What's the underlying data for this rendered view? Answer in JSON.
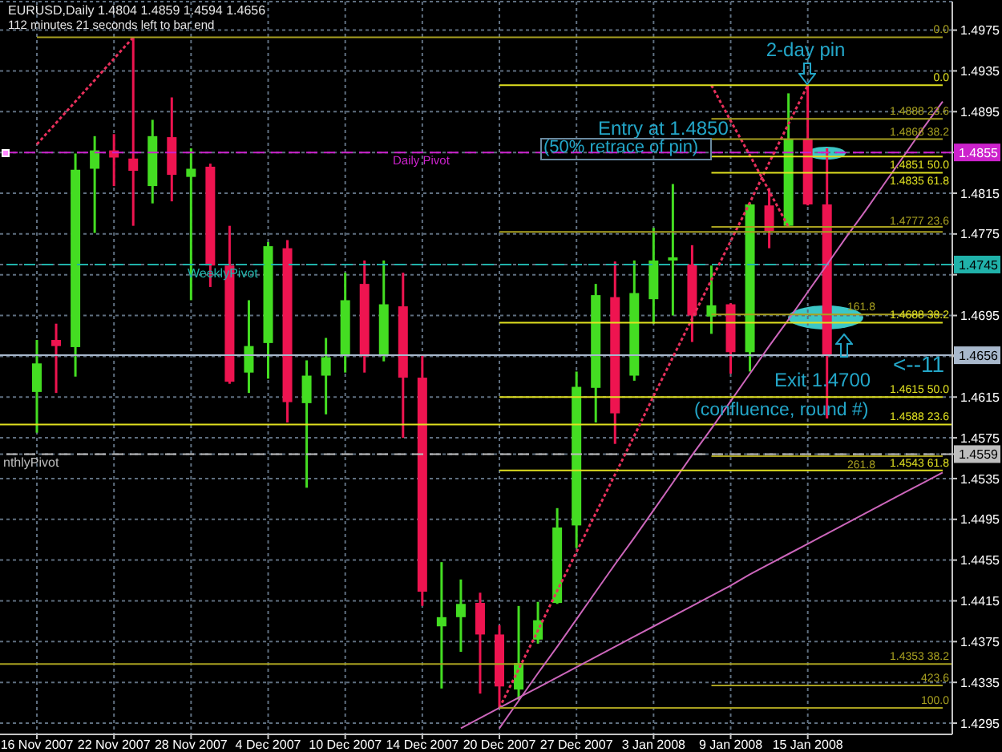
{
  "chart_data": {
    "type": "candlestick",
    "title": "EURUSD,Daily 1.4804 1.4859 1.4594 1.4656",
    "subtitle": "112 minutes 21 seconds left to bar end",
    "categories": [
      "16 Nov 2007",
      null,
      null,
      null,
      "22 Nov 2007",
      null,
      null,
      null,
      "28 Nov 2007",
      null,
      null,
      null,
      "4 Dec 2007",
      null,
      null,
      null,
      "10 Dec 2007",
      null,
      null,
      null,
      "14 Dec 2007",
      null,
      null,
      null,
      "20 Dec 2007",
      null,
      null,
      null,
      "27 Dec 2007",
      null,
      null,
      null,
      "3 Jan 2008",
      null,
      null,
      null,
      "9 Jan 2008",
      null,
      null,
      null,
      "15 Jan 2008",
      null,
      null,
      null,
      null,
      null,
      null,
      null
    ],
    "ohlc": [
      [
        1.462,
        1.4671,
        1.458,
        1.4648
      ],
      [
        1.4671,
        1.4687,
        1.4619,
        1.4665
      ],
      [
        1.4664,
        1.4854,
        1.4635,
        1.4838
      ],
      [
        1.4839,
        1.4871,
        1.4776,
        1.4857
      ],
      [
        1.4857,
        1.4873,
        1.4822,
        1.485
      ],
      [
        1.4849,
        1.4968,
        1.4783,
        1.4837
      ],
      [
        1.4822,
        1.4887,
        1.4805,
        1.4871
      ],
      [
        1.487,
        1.4909,
        1.4807,
        1.4833
      ],
      [
        1.4831,
        1.4859,
        1.471,
        1.4839
      ],
      [
        1.4841,
        1.4844,
        1.4723,
        1.4744
      ],
      [
        1.4744,
        1.4783,
        1.4628,
        1.463
      ],
      [
        1.4639,
        1.471,
        1.4619,
        1.4665
      ],
      [
        1.4668,
        1.4767,
        1.4633,
        1.4763
      ],
      [
        1.4761,
        1.4769,
        1.459,
        1.461
      ],
      [
        1.4609,
        1.4651,
        1.4526,
        1.4636
      ],
      [
        1.4636,
        1.4673,
        1.4598,
        1.4654
      ],
      [
        1.4656,
        1.4737,
        1.4639,
        1.471
      ],
      [
        1.4726,
        1.4749,
        1.4639,
        1.4655
      ],
      [
        1.4656,
        1.4749,
        1.465,
        1.4706
      ],
      [
        1.4704,
        1.4737,
        1.4575,
        1.4634
      ],
      [
        1.4634,
        1.4656,
        1.441,
        1.4424
      ],
      [
        1.439,
        1.4453,
        1.4329,
        1.4399
      ],
      [
        1.4399,
        1.4436,
        1.4365,
        1.4412
      ],
      [
        1.4413,
        1.4423,
        1.4324,
        1.4382
      ],
      [
        1.4382,
        1.4391,
        1.431,
        1.4331
      ],
      [
        1.4328,
        1.441,
        1.4318,
        1.4354
      ],
      [
        1.4377,
        1.4414,
        1.4373,
        1.4396
      ],
      [
        1.4413,
        1.4506,
        1.4412,
        1.4487
      ],
      [
        1.4489,
        1.464,
        1.4467,
        1.4625
      ],
      [
        1.4624,
        1.4726,
        1.459,
        1.4715
      ],
      [
        1.4713,
        1.4748,
        1.4569,
        1.4599
      ],
      [
        1.4636,
        1.4749,
        1.4631,
        1.4717
      ],
      [
        1.4711,
        1.4781,
        1.4687,
        1.4749
      ],
      [
        1.4749,
        1.4824,
        1.4695,
        1.4752
      ],
      [
        1.4745,
        1.4764,
        1.4669,
        1.4695
      ],
      [
        1.4694,
        1.4744,
        1.4677,
        1.4705
      ],
      [
        1.4706,
        1.4707,
        1.4638,
        1.4659
      ],
      [
        1.4659,
        1.4805,
        1.464,
        1.4804
      ],
      [
        1.4803,
        1.482,
        1.4761,
        1.4778
      ],
      [
        1.4783,
        1.4913,
        1.4782,
        1.4868
      ],
      [
        1.4868,
        1.4921,
        1.4803,
        1.4804
      ],
      [
        1.4804,
        1.4859,
        1.4594,
        1.4656
      ],
      null,
      null,
      null,
      null,
      null,
      null
    ],
    "colors": [
      "#44dd22",
      "#ee1450",
      "#44dd22",
      "#44dd22",
      "#ee1450",
      "#ee1450",
      "#44dd22",
      "#ee1450",
      "#44dd22",
      "#ee1450",
      "#ee1450",
      "#44dd22",
      "#44dd22",
      "#ee1450",
      "#44dd22",
      "#44dd22",
      "#44dd22",
      "#ee1450",
      "#44dd22",
      "#ee1450",
      "#ee1450",
      "#44dd22",
      "#44dd22",
      "#ee1450",
      "#ee1450",
      "#44dd22",
      "#44dd22",
      "#44dd22",
      "#44dd22",
      "#44dd22",
      "#ee1450",
      "#44dd22",
      "#44dd22",
      "#44dd22",
      "#ee1450",
      "#44dd22",
      "#ee1450",
      "#44dd22",
      "#ee1450",
      "#44dd22",
      "#ee1450",
      "#ee1450",
      null,
      null,
      null,
      null,
      null,
      null
    ],
    "series": [
      {
        "type": "line",
        "color": "#e8305c",
        "line_style": "dotted",
        "values": [
          1.4863,
          1.4884,
          1.4905,
          1.4926,
          1.4947,
          1.4968,
          null,
          null,
          null,
          null,
          null,
          null,
          null,
          null,
          null,
          null,
          null,
          null,
          null,
          null,
          null,
          null,
          null,
          null,
          null,
          null,
          null,
          null,
          null,
          null,
          null,
          null,
          null,
          null,
          null,
          null,
          null,
          null,
          null,
          null,
          null,
          null,
          null,
          null,
          null,
          null,
          null,
          null
        ]
      },
      {
        "type": "line",
        "color": "#e8305c",
        "line_style": "dotted",
        "values": [
          null,
          null,
          null,
          null,
          null,
          null,
          null,
          null,
          null,
          null,
          null,
          null,
          null,
          null,
          null,
          null,
          null,
          null,
          null,
          null,
          null,
          null,
          null,
          null,
          1.431,
          1.4348,
          1.4386,
          1.4425,
          1.4463,
          1.4501,
          1.4539,
          1.4577,
          1.4616,
          1.4654,
          1.4692,
          1.473,
          1.4768,
          1.4806,
          1.4845,
          1.4883,
          1.4921,
          null,
          null,
          null,
          null,
          null,
          null,
          null
        ]
      },
      {
        "type": "line",
        "color": "#e8305c",
        "line_style": "dotted",
        "values": [
          null,
          null,
          null,
          null,
          null,
          null,
          null,
          null,
          null,
          null,
          null,
          null,
          null,
          null,
          null,
          null,
          null,
          null,
          null,
          null,
          null,
          null,
          null,
          null,
          null,
          null,
          null,
          null,
          null,
          null,
          null,
          null,
          null,
          null,
          null,
          1.4921,
          1.4886,
          1.4852,
          1.4817,
          1.4782,
          null,
          null,
          null,
          null,
          null,
          null,
          null,
          null
        ]
      },
      {
        "type": "line",
        "color": "#cc66bb",
        "values": [
          null,
          null,
          null,
          null,
          null,
          null,
          null,
          null,
          null,
          null,
          null,
          null,
          null,
          null,
          null,
          null,
          null,
          null,
          null,
          null,
          null,
          null,
          null,
          null,
          1.429,
          1.4317,
          1.4344,
          1.437,
          1.4397,
          1.4424,
          1.4451,
          1.4477,
          1.4504,
          1.4531,
          1.4558,
          1.4584,
          1.4611,
          1.4638,
          1.4665,
          1.4691,
          1.4718,
          1.4745,
          1.4772,
          1.4798,
          1.4825,
          1.4852,
          1.4879,
          1.4905
        ]
      },
      {
        "type": "line",
        "color": "#cc66bb",
        "values": [
          null,
          null,
          null,
          null,
          null,
          null,
          null,
          null,
          null,
          null,
          null,
          null,
          null,
          null,
          null,
          null,
          null,
          null,
          null,
          null,
          null,
          null,
          1.429,
          1.43,
          1.431,
          1.432,
          1.433,
          1.434,
          1.435,
          1.436,
          1.437,
          1.438,
          1.439,
          1.44,
          1.441,
          1.442,
          1.443,
          1.4441,
          1.4451,
          1.4461,
          1.4471,
          1.4481,
          1.4491,
          1.4501,
          1.4511,
          1.4521,
          1.4531,
          1.4541
        ]
      },
      {
        "type": "line",
        "name": "0.0",
        "color": "#e0e020",
        "values": [
          null,
          null,
          null,
          null,
          null,
          null,
          null,
          null,
          null,
          null,
          null,
          null,
          null,
          null,
          null,
          null,
          null,
          null,
          null,
          null,
          null,
          null,
          null,
          null,
          1.4921,
          1.4921,
          1.4921,
          1.4921,
          1.4921,
          1.4921,
          1.4921,
          1.4921,
          1.4921,
          1.4921,
          1.4921,
          1.4921,
          1.4921,
          1.4921,
          1.4921,
          1.4921,
          1.4921,
          1.4921,
          1.4921,
          1.4921,
          1.4921,
          1.4921,
          1.4921,
          1.4921
        ]
      },
      {
        "type": "line",
        "name": "1.4777 23.6",
        "color": "#a8a020",
        "values": [
          null,
          null,
          null,
          null,
          null,
          null,
          null,
          null,
          null,
          null,
          null,
          null,
          null,
          null,
          null,
          null,
          null,
          null,
          null,
          null,
          null,
          null,
          null,
          null,
          1.4777,
          1.4777,
          1.4777,
          1.4777,
          1.4777,
          1.4777,
          1.4777,
          1.4777,
          1.4777,
          1.4777,
          1.4777,
          1.4777,
          1.4777,
          1.4777,
          1.4777,
          1.4777,
          1.4777,
          1.4777,
          1.4777,
          1.4777,
          1.4777,
          1.4777,
          1.4777,
          1.4777
        ]
      },
      {
        "type": "line",
        "name": "1.4688 38.2",
        "color": "#e0e020",
        "values": [
          null,
          null,
          null,
          null,
          null,
          null,
          null,
          null,
          null,
          null,
          null,
          null,
          null,
          null,
          null,
          null,
          null,
          null,
          null,
          null,
          null,
          null,
          null,
          null,
          1.4688,
          1.4688,
          1.4688,
          1.4688,
          1.4688,
          1.4688,
          1.4688,
          1.4688,
          1.4688,
          1.4688,
          1.4688,
          1.4688,
          1.4688,
          1.4688,
          1.4688,
          1.4688,
          1.4688,
          1.4688,
          1.4688,
          1.4688,
          1.4688,
          1.4688,
          1.4688,
          1.4688
        ]
      },
      {
        "type": "line",
        "name": "1.4615 50.0",
        "color": "#e0e020",
        "values": [
          null,
          null,
          null,
          null,
          null,
          null,
          null,
          null,
          null,
          null,
          null,
          null,
          null,
          null,
          null,
          null,
          null,
          null,
          null,
          null,
          null,
          null,
          null,
          null,
          1.4615,
          1.4615,
          1.4615,
          1.4615,
          1.4615,
          1.4615,
          1.4615,
          1.4615,
          1.4615,
          1.4615,
          1.4615,
          1.4615,
          1.4615,
          1.4615,
          1.4615,
          1.4615,
          1.4615,
          1.4615,
          1.4615,
          1.4615,
          1.4615,
          1.4615,
          1.4615,
          1.4615
        ]
      },
      {
        "type": "line",
        "name": "1.4543 61.8",
        "color": "#e0e020",
        "values": [
          null,
          null,
          null,
          null,
          null,
          null,
          null,
          null,
          null,
          null,
          null,
          null,
          null,
          null,
          null,
          null,
          null,
          null,
          null,
          null,
          null,
          null,
          null,
          null,
          1.4543,
          1.4543,
          1.4543,
          1.4543,
          1.4543,
          1.4543,
          1.4543,
          1.4543,
          1.4543,
          1.4543,
          1.4543,
          1.4543,
          1.4543,
          1.4543,
          1.4543,
          1.4543,
          1.4543,
          1.4543,
          1.4543,
          1.4543,
          1.4543,
          1.4543,
          1.4543,
          1.4543
        ]
      },
      {
        "type": "line",
        "name": "100.0",
        "color": "#a8a020",
        "values": [
          null,
          null,
          null,
          null,
          null,
          null,
          null,
          null,
          null,
          null,
          null,
          null,
          null,
          null,
          null,
          null,
          null,
          null,
          null,
          null,
          null,
          null,
          null,
          null,
          1.431,
          1.431,
          1.431,
          1.431,
          1.431,
          1.431,
          1.431,
          1.431,
          1.431,
          1.431,
          1.431,
          1.431,
          1.431,
          1.431,
          1.431,
          1.431,
          1.431,
          1.431,
          1.431,
          1.431,
          1.431,
          1.431,
          1.431,
          1.431
        ]
      },
      {
        "type": "line",
        "name": "1.4888 23.6",
        "color": "#a8a020",
        "values": [
          null,
          null,
          null,
          null,
          null,
          null,
          null,
          null,
          null,
          null,
          null,
          null,
          null,
          null,
          null,
          null,
          null,
          null,
          null,
          null,
          null,
          null,
          null,
          null,
          null,
          null,
          null,
          null,
          null,
          null,
          null,
          null,
          null,
          null,
          null,
          1.4888,
          1.4888,
          1.4888,
          1.4888,
          1.4888,
          1.4888,
          1.4888,
          1.4888,
          1.4888,
          1.4888,
          1.4888,
          1.4888,
          1.4888
        ]
      },
      {
        "type": "line",
        "name": "1.4868 38.2",
        "color": "#a8a020",
        "values": [
          null,
          null,
          null,
          null,
          null,
          null,
          null,
          null,
          null,
          null,
          null,
          null,
          null,
          null,
          null,
          null,
          null,
          null,
          null,
          null,
          null,
          null,
          null,
          null,
          null,
          null,
          null,
          null,
          null,
          null,
          null,
          null,
          null,
          null,
          null,
          1.4868,
          1.4868,
          1.4868,
          1.4868,
          1.4868,
          1.4868,
          1.4868,
          1.4868,
          1.4868,
          1.4868,
          1.4868,
          1.4868,
          1.4868
        ]
      },
      {
        "type": "line",
        "name": "1.4851 50.0",
        "color": "#e0e020",
        "values": [
          null,
          null,
          null,
          null,
          null,
          null,
          null,
          null,
          null,
          null,
          null,
          null,
          null,
          null,
          null,
          null,
          null,
          null,
          null,
          null,
          null,
          null,
          null,
          null,
          null,
          null,
          null,
          null,
          null,
          null,
          null,
          null,
          null,
          null,
          null,
          1.4851,
          1.4851,
          1.4851,
          1.4851,
          1.4851,
          1.4851,
          1.4851,
          1.4851,
          1.4851,
          1.4851,
          1.4851,
          1.4851,
          1.4851
        ]
      },
      {
        "type": "line",
        "name": "1.4835 61.8",
        "color": "#e0e020",
        "values": [
          null,
          null,
          null,
          null,
          null,
          null,
          null,
          null,
          null,
          null,
          null,
          null,
          null,
          null,
          null,
          null,
          null,
          null,
          null,
          null,
          null,
          null,
          null,
          null,
          null,
          null,
          null,
          null,
          null,
          null,
          null,
          null,
          null,
          null,
          null,
          1.4835,
          1.4835,
          1.4835,
          1.4835,
          1.4835,
          1.4835,
          1.4835,
          1.4835,
          1.4835,
          1.4835,
          1.4835,
          1.4835,
          1.4835
        ]
      },
      {
        "type": "line",
        "color": "#a8a020",
        "values": [
          null,
          null,
          null,
          null,
          null,
          null,
          null,
          null,
          null,
          null,
          null,
          null,
          null,
          null,
          null,
          null,
          null,
          null,
          null,
          null,
          null,
          null,
          null,
          null,
          null,
          null,
          null,
          null,
          null,
          null,
          null,
          null,
          null,
          null,
          null,
          1.4782,
          1.4782,
          1.4782,
          1.4782,
          1.4782,
          1.4782,
          1.4782,
          1.4782,
          1.4782,
          1.4782,
          1.4782,
          1.4782,
          1.4782
        ]
      },
      {
        "type": "line",
        "name": "161.8",
        "color": "#a8a020",
        "values": [
          null,
          null,
          null,
          null,
          null,
          null,
          null,
          null,
          null,
          null,
          null,
          null,
          null,
          null,
          null,
          null,
          null,
          null,
          null,
          null,
          null,
          null,
          null,
          null,
          null,
          null,
          null,
          null,
          null,
          null,
          null,
          null,
          null,
          null,
          null,
          1.4696,
          1.4696,
          1.4696,
          1.4696,
          1.4696,
          1.4696,
          1.4696,
          1.4696,
          1.4696,
          1.4696,
          1.4696,
          1.4696,
          1.4696
        ]
      },
      {
        "type": "line",
        "name": "261.8",
        "color": "#a8a020",
        "values": [
          null,
          null,
          null,
          null,
          null,
          null,
          null,
          null,
          null,
          null,
          null,
          null,
          null,
          null,
          null,
          null,
          null,
          null,
          null,
          null,
          null,
          null,
          null,
          null,
          null,
          null,
          null,
          null,
          null,
          null,
          null,
          null,
          null,
          null,
          null,
          1.4557,
          1.4557,
          1.4557,
          1.4557,
          1.4557,
          1.4557,
          1.4557,
          1.4557,
          1.4557,
          1.4557,
          1.4557,
          1.4557,
          1.4557
        ]
      },
      {
        "type": "line",
        "name": "423.6",
        "color": "#a8a020",
        "values": [
          null,
          null,
          null,
          null,
          null,
          null,
          null,
          null,
          null,
          null,
          null,
          null,
          null,
          null,
          null,
          null,
          null,
          null,
          null,
          null,
          null,
          null,
          null,
          null,
          null,
          null,
          null,
          null,
          null,
          null,
          null,
          null,
          null,
          null,
          null,
          1.4332,
          1.4332,
          1.4332,
          1.4332,
          1.4332,
          1.4332,
          1.4332,
          1.4332,
          1.4332,
          1.4332,
          1.4332,
          1.4332,
          1.4332
        ]
      },
      {
        "type": "line",
        "name": "0.0",
        "color": "#a8a020",
        "values": [
          1.4968,
          1.4968,
          1.4968,
          1.4968,
          1.4968,
          1.4968,
          1.4968,
          1.4968,
          1.4968,
          1.4968,
          1.4968,
          1.4968,
          1.4968,
          1.4968,
          1.4968,
          1.4968,
          1.4968,
          1.4968,
          1.4968,
          1.4968,
          1.4968,
          1.4968,
          1.4968,
          1.4968,
          1.4968,
          1.4968,
          1.4968,
          1.4968,
          1.4968,
          1.4968,
          1.4968,
          1.4968,
          1.4968,
          1.4968,
          1.4968,
          1.4968,
          1.4968,
          1.4968,
          1.4968,
          1.4968,
          1.4968,
          1.4968,
          1.4968,
          1.4968,
          1.4968,
          1.4968,
          1.4968,
          1.4968
        ]
      }
    ],
    "ylim": [
      1.4284,
      1.5003
    ],
    "yticks": [
      1.4295,
      1.4335,
      1.4375,
      1.4415,
      1.4455,
      1.4495,
      1.4535,
      1.4559,
      1.4575,
      1.4615,
      {
        "value": 1.4655,
        "label": null
      },
      1.4656,
      1.4695,
      {
        "value": 1.4735,
        "label": null
      },
      1.4745,
      1.4775,
      1.4815,
      1.4855,
      1.4895,
      1.4935,
      1.4975
    ],
    "grid": true,
    "ref_lines": [
      {
        "axis": "y",
        "value": 1.4855,
        "label": "Daily Pivot",
        "color": "#cc22cc",
        "line_style": "dashed"
      },
      {
        "axis": "y",
        "value": 1.4745,
        "label": "WeeklyPivot",
        "color": "#20b2aa",
        "line_style": "dashed"
      },
      {
        "axis": "y",
        "value": 1.4656,
        "color": "#a8b8cc"
      },
      {
        "axis": "y",
        "value": 1.4588,
        "label": "1.4588 23.6",
        "color": "#e0e020"
      },
      {
        "axis": "y",
        "value": 1.4559,
        "label": "nthlyPivot",
        "color": "#bebebe",
        "line_style": "dashed"
      },
      {
        "axis": "y",
        "value": 1.4353,
        "label": "1.4353 38.2",
        "color": "#a8a020"
      }
    ],
    "annotations": [
      {
        "text": "2-day pin",
        "x": "15 Jan 2008",
        "y": 1.4921
      },
      "Entry at 1.4850",
      "(50% retrace of pin)",
      "Exit 1.4700",
      "(confluence, round #)",
      "<--11"
    ]
  }
}
